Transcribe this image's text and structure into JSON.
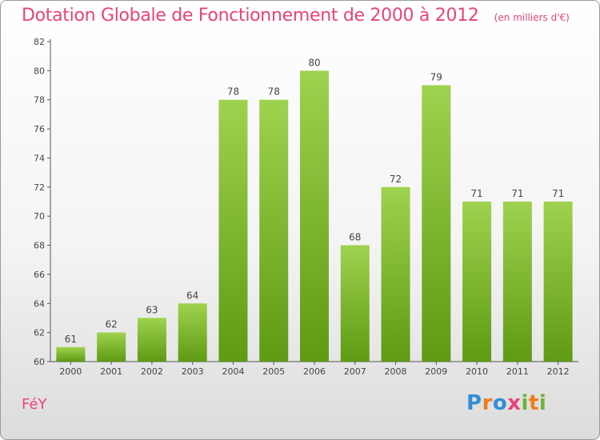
{
  "chart_data": {
    "type": "bar",
    "title": "Dotation Globale de Fonctionnement de 2000 à 2012",
    "subtitle": "(en milliers d'€)",
    "categories": [
      "2000",
      "2001",
      "2002",
      "2003",
      "2004",
      "2005",
      "2006",
      "2007",
      "2008",
      "2009",
      "2010",
      "2011",
      "2012"
    ],
    "values": [
      61,
      62,
      63,
      64,
      78,
      78,
      80,
      68,
      72,
      79,
      71,
      71,
      71
    ],
    "ylim": [
      60,
      82
    ],
    "yticks": [
      60,
      62,
      64,
      66,
      68,
      70,
      72,
      74,
      76,
      78,
      80,
      82
    ],
    "bar_color": "#8cc63f",
    "grid": false
  },
  "footer": {
    "place": "FéY",
    "logo": "Proxiti"
  }
}
